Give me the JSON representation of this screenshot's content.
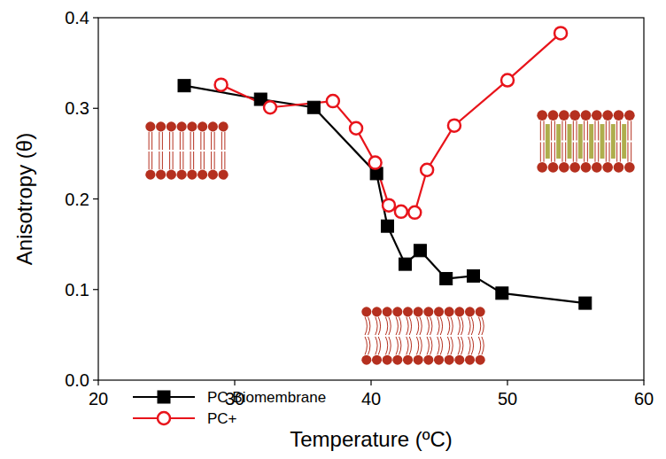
{
  "chart_data": {
    "type": "line",
    "x_label": "Temperature (ºC)",
    "y_label": "Anisotropy (θ)",
    "xlim": [
      20,
      60
    ],
    "xticks": [
      20,
      30,
      40,
      50,
      60
    ],
    "ylim": [
      0,
      0.4
    ],
    "yticks": [
      {
        "value": 0,
        "label": "0.0"
      },
      0.1,
      0.2,
      0.3,
      0.4
    ],
    "grid": false,
    "legend": "lower left",
    "series": [
      {
        "name": "PC Biomembrane",
        "color": "#000000",
        "marker": "square",
        "line_style": "solid",
        "x": [
          26.3,
          31.9,
          35.8,
          40.4,
          41.2,
          42.5,
          43.6,
          45.5,
          47.5,
          49.6,
          55.7
        ],
        "values": [
          0.325,
          0.31,
          0.301,
          0.228,
          0.17,
          0.128,
          0.143,
          0.112,
          0.115,
          0.096,
          0.085
        ]
      },
      {
        "name": "PC+",
        "color": "#e8141b",
        "marker": "circle",
        "line_style": "solid",
        "x": [
          29.0,
          32.6,
          37.2,
          38.9,
          40.3,
          41.3,
          42.2,
          43.2,
          44.1,
          46.1,
          50.0,
          53.9
        ],
        "values": [
          0.326,
          0.301,
          0.308,
          0.278,
          0.24,
          0.193,
          0.186,
          0.185,
          0.232,
          0.281,
          0.331,
          0.383
        ]
      }
    ]
  }
}
